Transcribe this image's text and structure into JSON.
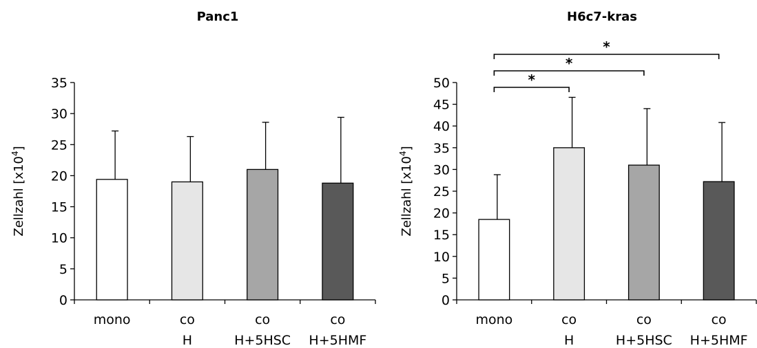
{
  "chart_data": [
    {
      "type": "bar",
      "title": "Panc1",
      "ylabel": "Zellzahl [x10",
      "ylabel_sup": "4",
      "ylabel_close": "]",
      "categories": [
        [
          "mono"
        ],
        [
          "co",
          "H"
        ],
        [
          "co",
          "H+5HSC"
        ],
        [
          "co",
          "H+5HMF"
        ]
      ],
      "values": [
        19.4,
        19.0,
        21.0,
        18.8
      ],
      "errors": [
        7.8,
        7.3,
        7.6,
        10.6
      ],
      "colors": [
        "#ffffff",
        "#e6e6e6",
        "#a6a6a6",
        "#595959"
      ],
      "ylim": [
        0,
        35
      ],
      "yticks": [
        0,
        5,
        10,
        15,
        20,
        25,
        30,
        35
      ],
      "significance": []
    },
    {
      "type": "bar",
      "title": "H6c7-kras",
      "ylabel": "Zellzahl [x10",
      "ylabel_sup": "4",
      "ylabel_close": "]",
      "categories": [
        [
          "mono"
        ],
        [
          "co",
          "H"
        ],
        [
          "co",
          "H+5HSC"
        ],
        [
          "co",
          "H+5HMF"
        ]
      ],
      "values": [
        18.5,
        35.0,
        31.0,
        27.2
      ],
      "errors": [
        10.3,
        11.6,
        13.0,
        13.6
      ],
      "colors": [
        "#ffffff",
        "#e6e6e6",
        "#a6a6a6",
        "#595959"
      ],
      "ylim": [
        0,
        50
      ],
      "yticks": [
        0,
        5,
        10,
        15,
        20,
        25,
        30,
        35,
        40,
        45,
        50
      ],
      "significance": [
        {
          "from": 0,
          "to": 1,
          "label": "*"
        },
        {
          "from": 0,
          "to": 2,
          "label": "*"
        },
        {
          "from": 0,
          "to": 3,
          "label": "*"
        }
      ]
    }
  ]
}
